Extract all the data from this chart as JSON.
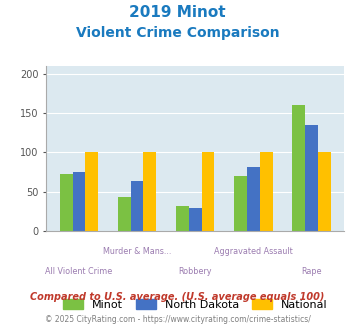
{
  "title_line1": "2019 Minot",
  "title_line2": "Violent Crime Comparison",
  "categories": [
    "All Violent Crime",
    "Murder & Mans...",
    "Robbery",
    "Aggravated Assault",
    "Rape"
  ],
  "series": {
    "Minot": [
      72,
      43,
      32,
      70,
      160
    ],
    "North Dakota": [
      75,
      64,
      29,
      81,
      135
    ],
    "National": [
      100,
      100,
      100,
      100,
      100
    ]
  },
  "colors": {
    "Minot": "#7bc143",
    "North Dakota": "#4472c4",
    "National": "#ffc000"
  },
  "ylim": [
    0,
    210
  ],
  "yticks": [
    0,
    50,
    100,
    150,
    200
  ],
  "plot_area_bg": "#dce9f0",
  "title_color": "#1a7abf",
  "xlabel_color": "#9b7cb0",
  "footnote1": "Compared to U.S. average. (U.S. average equals 100)",
  "footnote2": "© 2025 CityRating.com - https://www.cityrating.com/crime-statistics/",
  "footnote1_color": "#c0392b",
  "footnote2_color": "#7f7f7f"
}
